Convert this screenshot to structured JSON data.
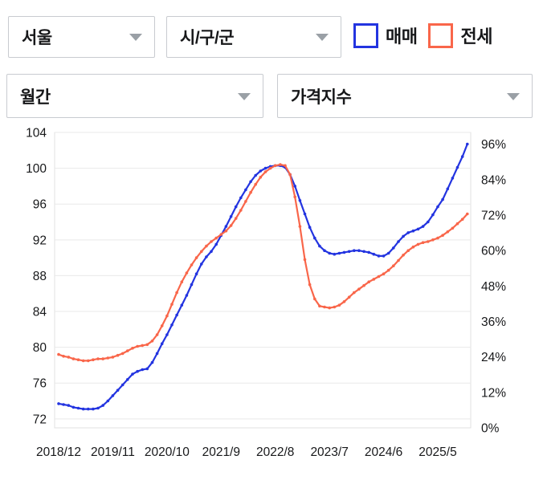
{
  "controls": {
    "region": {
      "value": "서울"
    },
    "district": {
      "value": "시/구/군"
    },
    "period": {
      "value": "월간"
    },
    "metric": {
      "value": "가격지수"
    }
  },
  "legend": [
    {
      "label": "매매",
      "color": "#2334e0"
    },
    {
      "label": "전세",
      "color": "#f9664a"
    }
  ],
  "chart_data": {
    "type": "line",
    "title": "",
    "xlabel": "",
    "ylabel": "",
    "grid": "horizontal",
    "legend_position": "top-right",
    "x_unit": "month",
    "x_start": "2018/12",
    "x_end": "2025/11",
    "x_tick_labels": [
      "2018/12",
      "2019/11",
      "2020/10",
      "2021/9",
      "2022/8",
      "2023/7",
      "2024/6",
      "2025/5"
    ],
    "x_tick_indices": [
      0,
      11,
      22,
      33,
      44,
      55,
      66,
      77
    ],
    "left_axis": {
      "min": 71,
      "max": 104,
      "ticks": [
        72,
        76,
        80,
        84,
        88,
        92,
        96,
        100,
        104
      ]
    },
    "right_axis": {
      "min": 0,
      "max": 100,
      "ticks": [
        "0%",
        "12%",
        "24%",
        "36%",
        "48%",
        "60%",
        "72%",
        "84%",
        "96%"
      ],
      "tick_values": [
        0,
        12,
        24,
        36,
        48,
        60,
        72,
        84,
        96
      ]
    },
    "series": [
      {
        "name": "매매",
        "color": "#2334e0",
        "values": [
          73.7,
          73.6,
          73.5,
          73.3,
          73.2,
          73.1,
          73.1,
          73.1,
          73.2,
          73.5,
          74.0,
          74.6,
          75.2,
          75.8,
          76.4,
          77.0,
          77.3,
          77.5,
          77.6,
          78.3,
          79.3,
          80.4,
          81.4,
          82.5,
          83.6,
          84.7,
          85.8,
          87.0,
          88.2,
          89.3,
          90.1,
          90.7,
          91.5,
          92.5,
          93.5,
          94.6,
          95.7,
          96.7,
          97.6,
          98.5,
          99.2,
          99.7,
          100.0,
          100.2,
          100.3,
          100.3,
          100.1,
          99.3,
          98.0,
          96.4,
          94.9,
          93.4,
          92.2,
          91.3,
          90.8,
          90.5,
          90.4,
          90.5,
          90.6,
          90.7,
          90.8,
          90.8,
          90.7,
          90.6,
          90.4,
          90.2,
          90.2,
          90.5,
          91.1,
          91.8,
          92.4,
          92.8,
          93.0,
          93.2,
          93.5,
          94.0,
          94.8,
          95.7,
          96.5,
          97.7,
          98.9,
          100.1,
          101.3,
          102.7
        ]
      },
      {
        "name": "전세",
        "color": "#f9664a",
        "values": [
          79.2,
          79.0,
          78.9,
          78.7,
          78.6,
          78.5,
          78.5,
          78.6,
          78.7,
          78.7,
          78.8,
          78.9,
          79.1,
          79.3,
          79.6,
          79.9,
          80.1,
          80.2,
          80.3,
          80.7,
          81.4,
          82.4,
          83.5,
          84.8,
          86.1,
          87.3,
          88.3,
          89.2,
          90.0,
          90.7,
          91.3,
          91.8,
          92.2,
          92.6,
          93.0,
          93.6,
          94.4,
          95.3,
          96.3,
          97.3,
          98.2,
          99.0,
          99.6,
          100.0,
          100.3,
          100.4,
          100.3,
          99.3,
          96.8,
          93.5,
          89.8,
          87.0,
          85.4,
          84.6,
          84.5,
          84.4,
          84.5,
          84.7,
          85.1,
          85.6,
          86.1,
          86.5,
          86.9,
          87.3,
          87.6,
          87.9,
          88.2,
          88.6,
          89.1,
          89.7,
          90.3,
          90.8,
          91.2,
          91.5,
          91.7,
          91.8,
          92.0,
          92.2,
          92.5,
          92.9,
          93.3,
          93.8,
          94.3,
          94.9
        ]
      }
    ]
  }
}
